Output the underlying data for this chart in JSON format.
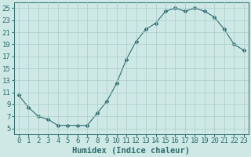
{
  "x": [
    0,
    1,
    2,
    3,
    4,
    5,
    6,
    7,
    8,
    9,
    10,
    11,
    12,
    13,
    14,
    15,
    16,
    17,
    18,
    19,
    20,
    21,
    22,
    23
  ],
  "y": [
    10.5,
    8.5,
    7.0,
    6.5,
    5.5,
    5.5,
    5.5,
    5.5,
    7.5,
    9.5,
    12.5,
    16.5,
    19.5,
    21.5,
    22.5,
    24.5,
    25.0,
    24.5,
    25.0,
    24.5,
    23.5,
    21.5,
    19.0,
    18.0
  ],
  "line_color": "#2d6e6e",
  "marker": "D",
  "marker_size": 2.5,
  "bg_color": "#cde8e5",
  "grid_color": "#a8ccc8",
  "xlabel": "Humidex (Indice chaleur)",
  "xlim": [
    -0.5,
    23.5
  ],
  "ylim": [
    4,
    26
  ],
  "yticks": [
    5,
    7,
    9,
    11,
    13,
    15,
    17,
    19,
    21,
    23,
    25
  ],
  "xticks": [
    0,
    1,
    2,
    3,
    4,
    5,
    6,
    7,
    8,
    9,
    10,
    11,
    12,
    13,
    14,
    15,
    16,
    17,
    18,
    19,
    20,
    21,
    22,
    23
  ],
  "font_color": "#2d6e6e",
  "font_size": 6.5,
  "xlabel_fontsize": 7.5
}
